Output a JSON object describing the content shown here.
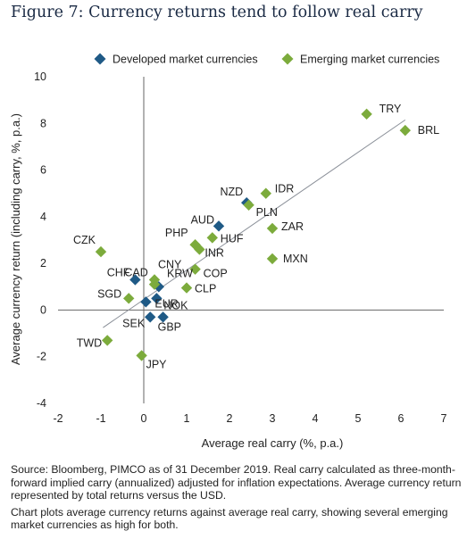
{
  "chart_data": {
    "type": "scatter",
    "title": "Figure 7: Currency returns tend to follow real carry",
    "xlabel": "Average real carry (%, p.a.)",
    "ylabel": "Average currency return (including carry, %, p.a.)",
    "xlim": [
      -2,
      7
    ],
    "ylim": [
      -4,
      10
    ],
    "xticks": [
      "-2",
      "-1",
      "0",
      "1",
      "2",
      "3",
      "4",
      "5",
      "6",
      "7"
    ],
    "yticks": [
      "-4",
      "-2",
      "0",
      "2",
      "4",
      "6",
      "8",
      "10"
    ],
    "grid": false,
    "legend_position": "top",
    "trendline": {
      "x": [
        -0.95,
        6.1
      ],
      "y": [
        -0.75,
        8.15
      ]
    },
    "series": [
      {
        "name": "Developed market currencies",
        "color": "#1f5a86",
        "marker": "diamond",
        "points": [
          {
            "label": "NZD",
            "x": 2.4,
            "y": 4.6
          },
          {
            "label": "AUD",
            "x": 1.75,
            "y": 3.6
          },
          {
            "label": "CAD",
            "x": 0.35,
            "y": 1.0
          },
          {
            "label": "CHF",
            "x": -0.2,
            "y": 1.3
          },
          {
            "label": "SEK",
            "x": 0.15,
            "y": -0.3
          },
          {
            "label": "GBP",
            "x": 0.45,
            "y": -0.3
          },
          {
            "label": "EUR",
            "x": 0.05,
            "y": 0.35
          },
          {
            "label": "NOK",
            "x": 0.3,
            "y": 0.5
          }
        ]
      },
      {
        "name": "Emerging market currencies",
        "color": "#7cab3c",
        "marker": "diamond",
        "points": [
          {
            "label": "TRY",
            "x": 5.2,
            "y": 8.4
          },
          {
            "label": "BRL",
            "x": 6.1,
            "y": 7.7
          },
          {
            "label": "IDR",
            "x": 2.85,
            "y": 5.0
          },
          {
            "label": "PLN",
            "x": 2.45,
            "y": 4.5
          },
          {
            "label": "ZAR",
            "x": 3.0,
            "y": 3.5
          },
          {
            "label": "MXN",
            "x": 3.0,
            "y": 2.2
          },
          {
            "label": "HUF",
            "x": 1.6,
            "y": 3.1
          },
          {
            "label": "PHP",
            "x": 1.2,
            "y": 2.8
          },
          {
            "label": "INR",
            "x": 1.3,
            "y": 2.6
          },
          {
            "label": "CZK",
            "x": -1.0,
            "y": 2.5
          },
          {
            "label": "CNY",
            "x": 0.25,
            "y": 1.3
          },
          {
            "label": "KRW",
            "x": 0.25,
            "y": 1.1
          },
          {
            "label": "COP",
            "x": 1.2,
            "y": 1.75
          },
          {
            "label": "CLP",
            "x": 1.0,
            "y": 0.95
          },
          {
            "label": "SGD",
            "x": -0.35,
            "y": 0.5
          },
          {
            "label": "TWD",
            "x": -0.85,
            "y": -1.3
          },
          {
            "label": "JPY",
            "x": -0.05,
            "y": -1.95
          }
        ]
      }
    ]
  },
  "notes": {
    "source": "Source: Bloomberg, PIMCO as of 31 December 2019. Real carry calculated as three-month-forward implied carry (annualized) adjusted for inflation expectations. Average currency return represented by total returns versus the USD.",
    "description": "Chart plots average currency returns against average real carry, showing several emerging market currencies as high for both."
  }
}
